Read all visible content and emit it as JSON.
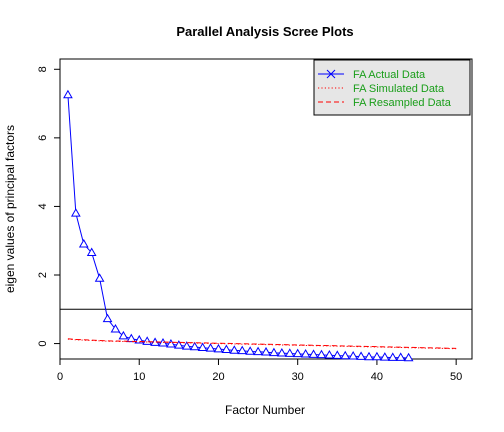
{
  "colors": {
    "actual": "#0000ff",
    "simulated": "#ff0000",
    "resampled": "#ff0000",
    "legend_bg": "#e6e6e6",
    "legend_text": "#1a9e1a",
    "reference_line": "#000000"
  },
  "chart_data": {
    "type": "line",
    "title": "Parallel Analysis Scree Plots",
    "xlabel": "Factor Number",
    "ylabel": "eigen values of principal factors",
    "xlim": [
      0,
      52
    ],
    "ylim": [
      -0.45,
      8.3
    ],
    "xticks": [
      0,
      10,
      20,
      30,
      40,
      50
    ],
    "yticks": [
      0,
      2,
      4,
      6,
      8
    ],
    "grid": false,
    "legend_position": "top-right",
    "reference_line_y": 1,
    "series": [
      {
        "name": "FA  Actual Data",
        "style": "line-triangle",
        "x": [
          1,
          2,
          3,
          4,
          5,
          6,
          7,
          8,
          9,
          10,
          11,
          12,
          13,
          14,
          15,
          16,
          17,
          18,
          19,
          20,
          21,
          22,
          23,
          24,
          25,
          26,
          27,
          28,
          29,
          30,
          31,
          32,
          33,
          34,
          35,
          36,
          37,
          38,
          39,
          40,
          41,
          42,
          43,
          44
        ],
        "values": [
          7.25,
          3.8,
          2.9,
          2.65,
          1.9,
          0.72,
          0.42,
          0.22,
          0.14,
          0.1,
          0.06,
          0.03,
          0.01,
          -0.02,
          -0.05,
          -0.08,
          -0.1,
          -0.12,
          -0.14,
          -0.16,
          -0.18,
          -0.2,
          -0.21,
          -0.23,
          -0.24,
          -0.25,
          -0.27,
          -0.28,
          -0.29,
          -0.3,
          -0.31,
          -0.32,
          -0.33,
          -0.34,
          -0.35,
          -0.36,
          -0.37,
          -0.38,
          -0.39,
          -0.39,
          -0.4,
          -0.41,
          -0.41,
          -0.42
        ]
      },
      {
        "name": "FA  Simulated Data",
        "style": "dotted",
        "x": [
          1,
          2,
          3,
          4,
          5,
          6,
          7,
          8,
          9,
          10,
          11,
          12,
          13,
          14,
          15,
          16,
          17,
          18,
          19,
          20,
          21,
          22,
          23,
          24,
          25,
          26,
          27,
          28,
          29,
          30,
          31,
          32,
          33,
          34,
          35,
          36,
          37,
          38,
          39,
          40,
          41,
          42,
          43,
          44,
          45,
          46,
          47,
          48,
          49,
          50
        ],
        "values": [
          0.13,
          0.11,
          0.1,
          0.09,
          0.08,
          0.07,
          0.065,
          0.06,
          0.055,
          0.05,
          0.045,
          0.04,
          0.035,
          0.03,
          0.025,
          0.02,
          0.015,
          0.01,
          0.005,
          0.0,
          -0.005,
          -0.01,
          -0.015,
          -0.02,
          -0.025,
          -0.03,
          -0.035,
          -0.04,
          -0.045,
          -0.05,
          -0.055,
          -0.06,
          -0.065,
          -0.07,
          -0.075,
          -0.08,
          -0.085,
          -0.09,
          -0.095,
          -0.1,
          -0.105,
          -0.11,
          -0.115,
          -0.12,
          -0.125,
          -0.13,
          -0.135,
          -0.14,
          -0.145,
          -0.15
        ]
      },
      {
        "name": "FA  Resampled Data",
        "style": "dashed",
        "x": [
          1,
          2,
          3,
          4,
          5,
          6,
          7,
          8,
          9,
          10,
          11,
          12,
          13,
          14,
          15,
          16,
          17,
          18,
          19,
          20,
          21,
          22,
          23,
          24,
          25,
          26,
          27,
          28,
          29,
          30,
          31,
          32,
          33,
          34,
          35,
          36,
          37,
          38,
          39,
          40,
          41,
          42,
          43,
          44,
          45,
          46,
          47,
          48,
          49,
          50
        ],
        "values": [
          0.14,
          0.12,
          0.11,
          0.1,
          0.09,
          0.08,
          0.075,
          0.07,
          0.065,
          0.06,
          0.055,
          0.05,
          0.045,
          0.04,
          0.035,
          0.03,
          0.025,
          0.02,
          0.015,
          0.01,
          0.005,
          0.0,
          -0.005,
          -0.01,
          -0.015,
          -0.02,
          -0.025,
          -0.03,
          -0.035,
          -0.04,
          -0.045,
          -0.05,
          -0.055,
          -0.06,
          -0.065,
          -0.07,
          -0.075,
          -0.08,
          -0.085,
          -0.09,
          -0.095,
          -0.1,
          -0.105,
          -0.11,
          -0.115,
          -0.12,
          -0.125,
          -0.13,
          -0.135,
          -0.14
        ]
      }
    ]
  }
}
